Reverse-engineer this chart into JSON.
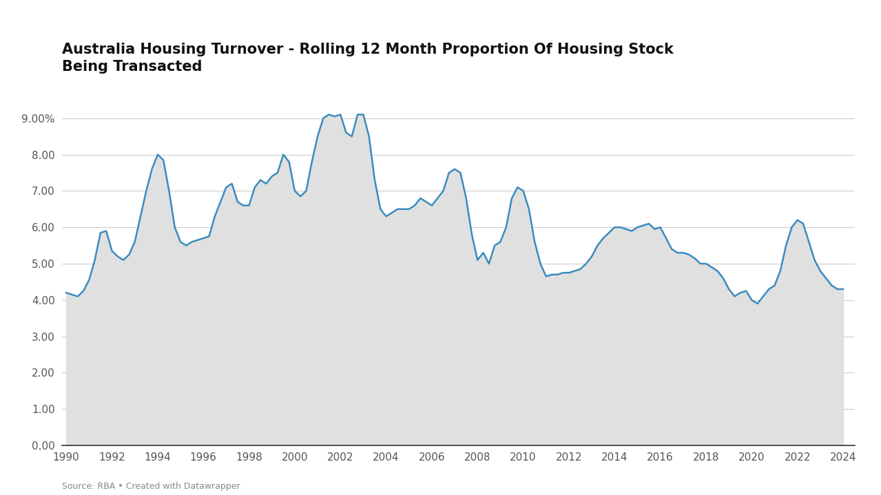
{
  "title_line1": "Australia Housing Turnover - Rolling 12 Month Proportion Of Housing Stock",
  "title_line2": "Being Transacted",
  "source": "Source: RBA • Created with Datawrapper",
  "line_color": "#3a8bbf",
  "fill_color": "#e0e0e0",
  "background_color": "#ffffff",
  "outer_background": "#ffffff",
  "grid_color": "#cccccc",
  "ylim": [
    0,
    9.8
  ],
  "yticks": [
    0.0,
    1.0,
    2.0,
    3.0,
    4.0,
    5.0,
    6.0,
    7.0,
    8.0,
    9.0
  ],
  "ytick_labels": [
    "0.00",
    "1.00",
    "2.00",
    "3.00",
    "4.00",
    "5.00",
    "6.00",
    "7.00",
    "8.00",
    "9.00%"
  ],
  "xticks": [
    1990,
    1992,
    1994,
    1996,
    1998,
    2000,
    2002,
    2004,
    2006,
    2008,
    2010,
    2012,
    2014,
    2016,
    2018,
    2020,
    2022,
    2024
  ],
  "xlim": [
    1989.8,
    2024.5
  ],
  "data": [
    [
      1990.0,
      4.2
    ],
    [
      1990.25,
      4.15
    ],
    [
      1990.5,
      4.1
    ],
    [
      1990.75,
      4.25
    ],
    [
      1991.0,
      4.55
    ],
    [
      1991.25,
      5.1
    ],
    [
      1991.5,
      5.85
    ],
    [
      1991.75,
      5.9
    ],
    [
      1992.0,
      5.35
    ],
    [
      1992.25,
      5.2
    ],
    [
      1992.5,
      5.1
    ],
    [
      1992.75,
      5.25
    ],
    [
      1993.0,
      5.6
    ],
    [
      1993.25,
      6.3
    ],
    [
      1993.5,
      7.0
    ],
    [
      1993.75,
      7.6
    ],
    [
      1994.0,
      8.0
    ],
    [
      1994.25,
      7.85
    ],
    [
      1994.5,
      7.0
    ],
    [
      1994.75,
      6.0
    ],
    [
      1995.0,
      5.6
    ],
    [
      1995.25,
      5.5
    ],
    [
      1995.5,
      5.6
    ],
    [
      1995.75,
      5.65
    ],
    [
      1996.0,
      5.7
    ],
    [
      1996.25,
      5.75
    ],
    [
      1996.5,
      6.3
    ],
    [
      1996.75,
      6.7
    ],
    [
      1997.0,
      7.1
    ],
    [
      1997.25,
      7.2
    ],
    [
      1997.5,
      6.7
    ],
    [
      1997.75,
      6.6
    ],
    [
      1998.0,
      6.6
    ],
    [
      1998.25,
      7.1
    ],
    [
      1998.5,
      7.3
    ],
    [
      1998.75,
      7.2
    ],
    [
      1999.0,
      7.4
    ],
    [
      1999.25,
      7.5
    ],
    [
      1999.5,
      8.0
    ],
    [
      1999.75,
      7.8
    ],
    [
      2000.0,
      7.0
    ],
    [
      2000.25,
      6.85
    ],
    [
      2000.5,
      7.0
    ],
    [
      2000.75,
      7.8
    ],
    [
      2001.0,
      8.5
    ],
    [
      2001.25,
      9.0
    ],
    [
      2001.5,
      9.1
    ],
    [
      2001.75,
      9.05
    ],
    [
      2002.0,
      9.1
    ],
    [
      2002.25,
      8.6
    ],
    [
      2002.5,
      8.5
    ],
    [
      2002.75,
      9.1
    ],
    [
      2003.0,
      9.1
    ],
    [
      2003.25,
      8.5
    ],
    [
      2003.5,
      7.3
    ],
    [
      2003.75,
      6.5
    ],
    [
      2004.0,
      6.3
    ],
    [
      2004.25,
      6.4
    ],
    [
      2004.5,
      6.5
    ],
    [
      2004.75,
      6.5
    ],
    [
      2005.0,
      6.5
    ],
    [
      2005.25,
      6.6
    ],
    [
      2005.5,
      6.8
    ],
    [
      2005.75,
      6.7
    ],
    [
      2006.0,
      6.6
    ],
    [
      2006.25,
      6.8
    ],
    [
      2006.5,
      7.0
    ],
    [
      2006.75,
      7.5
    ],
    [
      2007.0,
      7.6
    ],
    [
      2007.25,
      7.5
    ],
    [
      2007.5,
      6.8
    ],
    [
      2007.75,
      5.8
    ],
    [
      2008.0,
      5.1
    ],
    [
      2008.25,
      5.3
    ],
    [
      2008.5,
      5.0
    ],
    [
      2008.75,
      5.5
    ],
    [
      2009.0,
      5.6
    ],
    [
      2009.25,
      6.0
    ],
    [
      2009.5,
      6.8
    ],
    [
      2009.75,
      7.1
    ],
    [
      2010.0,
      7.0
    ],
    [
      2010.25,
      6.5
    ],
    [
      2010.5,
      5.6
    ],
    [
      2010.75,
      5.0
    ],
    [
      2011.0,
      4.65
    ],
    [
      2011.25,
      4.7
    ],
    [
      2011.5,
      4.7
    ],
    [
      2011.75,
      4.75
    ],
    [
      2012.0,
      4.75
    ],
    [
      2012.25,
      4.8
    ],
    [
      2012.5,
      4.85
    ],
    [
      2012.75,
      5.0
    ],
    [
      2013.0,
      5.2
    ],
    [
      2013.25,
      5.5
    ],
    [
      2013.5,
      5.7
    ],
    [
      2013.75,
      5.85
    ],
    [
      2014.0,
      6.0
    ],
    [
      2014.25,
      6.0
    ],
    [
      2014.5,
      5.95
    ],
    [
      2014.75,
      5.9
    ],
    [
      2015.0,
      6.0
    ],
    [
      2015.25,
      6.05
    ],
    [
      2015.5,
      6.1
    ],
    [
      2015.75,
      5.95
    ],
    [
      2016.0,
      6.0
    ],
    [
      2016.25,
      5.7
    ],
    [
      2016.5,
      5.4
    ],
    [
      2016.75,
      5.3
    ],
    [
      2017.0,
      5.3
    ],
    [
      2017.25,
      5.25
    ],
    [
      2017.5,
      5.15
    ],
    [
      2017.75,
      5.0
    ],
    [
      2018.0,
      5.0
    ],
    [
      2018.25,
      4.9
    ],
    [
      2018.5,
      4.8
    ],
    [
      2018.75,
      4.6
    ],
    [
      2019.0,
      4.3
    ],
    [
      2019.25,
      4.1
    ],
    [
      2019.5,
      4.2
    ],
    [
      2019.75,
      4.25
    ],
    [
      2020.0,
      4.0
    ],
    [
      2020.25,
      3.9
    ],
    [
      2020.5,
      4.1
    ],
    [
      2020.75,
      4.3
    ],
    [
      2021.0,
      4.4
    ],
    [
      2021.25,
      4.8
    ],
    [
      2021.5,
      5.5
    ],
    [
      2021.75,
      6.0
    ],
    [
      2022.0,
      6.2
    ],
    [
      2022.25,
      6.1
    ],
    [
      2022.5,
      5.6
    ],
    [
      2022.75,
      5.1
    ],
    [
      2023.0,
      4.8
    ],
    [
      2023.25,
      4.6
    ],
    [
      2023.5,
      4.4
    ],
    [
      2023.75,
      4.3
    ],
    [
      2024.0,
      4.3
    ]
  ]
}
